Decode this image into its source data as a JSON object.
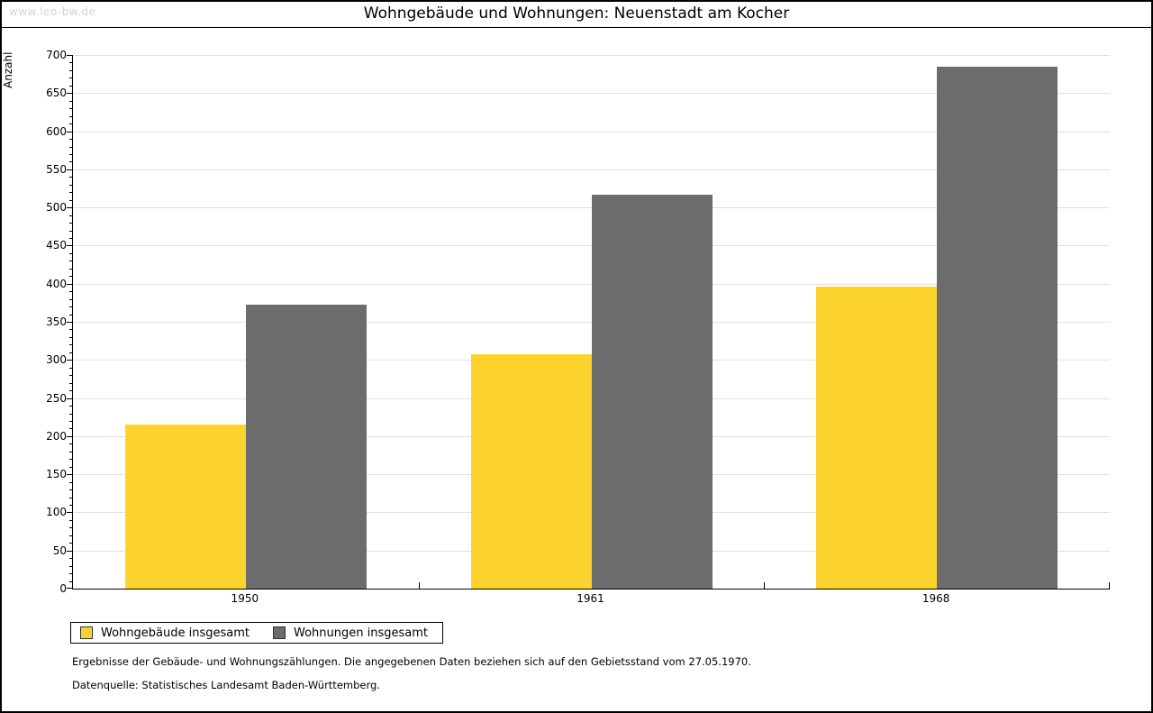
{
  "watermark": "www.leo-bw.de",
  "header": {
    "title": "Wohngebäude und Wohnungen: Neuenstadt am Kocher"
  },
  "chart_data": {
    "type": "bar",
    "title": "Wohngebäude und Wohnungen: Neuenstadt am Kocher",
    "xlabel": "",
    "ylabel": "Anzahl",
    "categories": [
      "1950",
      "1961",
      "1968"
    ],
    "series": [
      {
        "name": "Wohngebäude insgesamt",
        "color": "#FCD32D",
        "values": [
          215,
          308,
          396
        ]
      },
      {
        "name": "Wohnungen insgesamt",
        "color": "#6C6C6C",
        "values": [
          373,
          517,
          685
        ]
      }
    ],
    "ylim": [
      0,
      700
    ],
    "ytick_step": 50,
    "y_minor_tick_step": 10,
    "grid": true,
    "gridline_color": "#E0E0E0",
    "axis_color": "#000000",
    "legend_position": "bottom-left"
  },
  "footnotes": {
    "line1": "Ergebnisse der Gebäude- und Wohnungszählungen. Die angegebenen Daten beziehen sich auf den Gebietsstand vom 27.05.1970.",
    "line2": "Datenquelle: Statistisches Landesamt Baden-Württemberg."
  }
}
